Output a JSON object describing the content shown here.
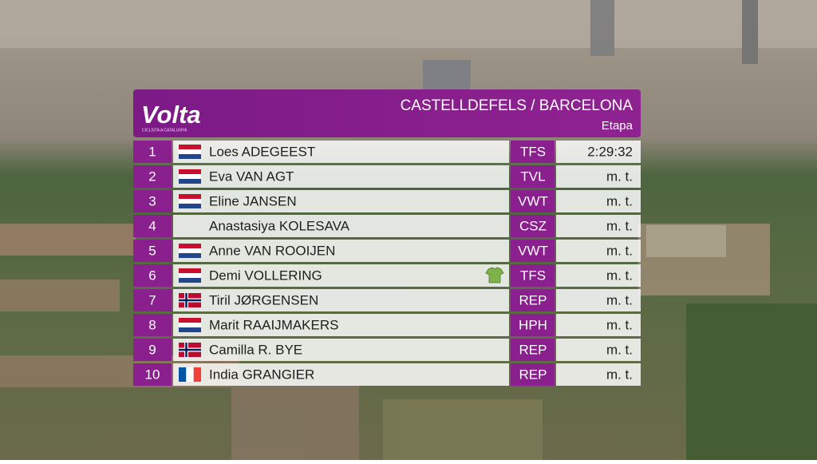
{
  "header": {
    "logo": "Volta",
    "logo_subtitle": "CICLISTA A CATALUNYA",
    "title": "CASTELLDEFELS / BARCELONA",
    "subtitle": "Etapa"
  },
  "table": {
    "rows": [
      [
        1,
        "Loes ADEGEEST",
        "TFS",
        "2:29:32"
      ],
      [
        2,
        "Eva VAN AGT",
        "TVL",
        "m. t."
      ],
      [
        3,
        "Eline JANSEN",
        "VWT",
        "m. t."
      ],
      [
        4,
        "Anastasiya KOLESAVA",
        "CSZ",
        "m. t."
      ],
      [
        5,
        "Anne VAN ROOIJEN",
        "VWT",
        "m. t."
      ],
      [
        6,
        "Demi VOLLERING",
        "TFS",
        "m. t."
      ],
      [
        7,
        "Tiril JØRGENSEN",
        "REP",
        "m. t."
      ],
      [
        8,
        "Marit RAAIJMAKERS",
        "HPH",
        "m. t."
      ],
      [
        9,
        "Camilla R. BYE",
        "REP",
        "m. t."
      ],
      [
        10,
        "India GRANGIER",
        "REP",
        "m. t."
      ]
    ]
  }
}
